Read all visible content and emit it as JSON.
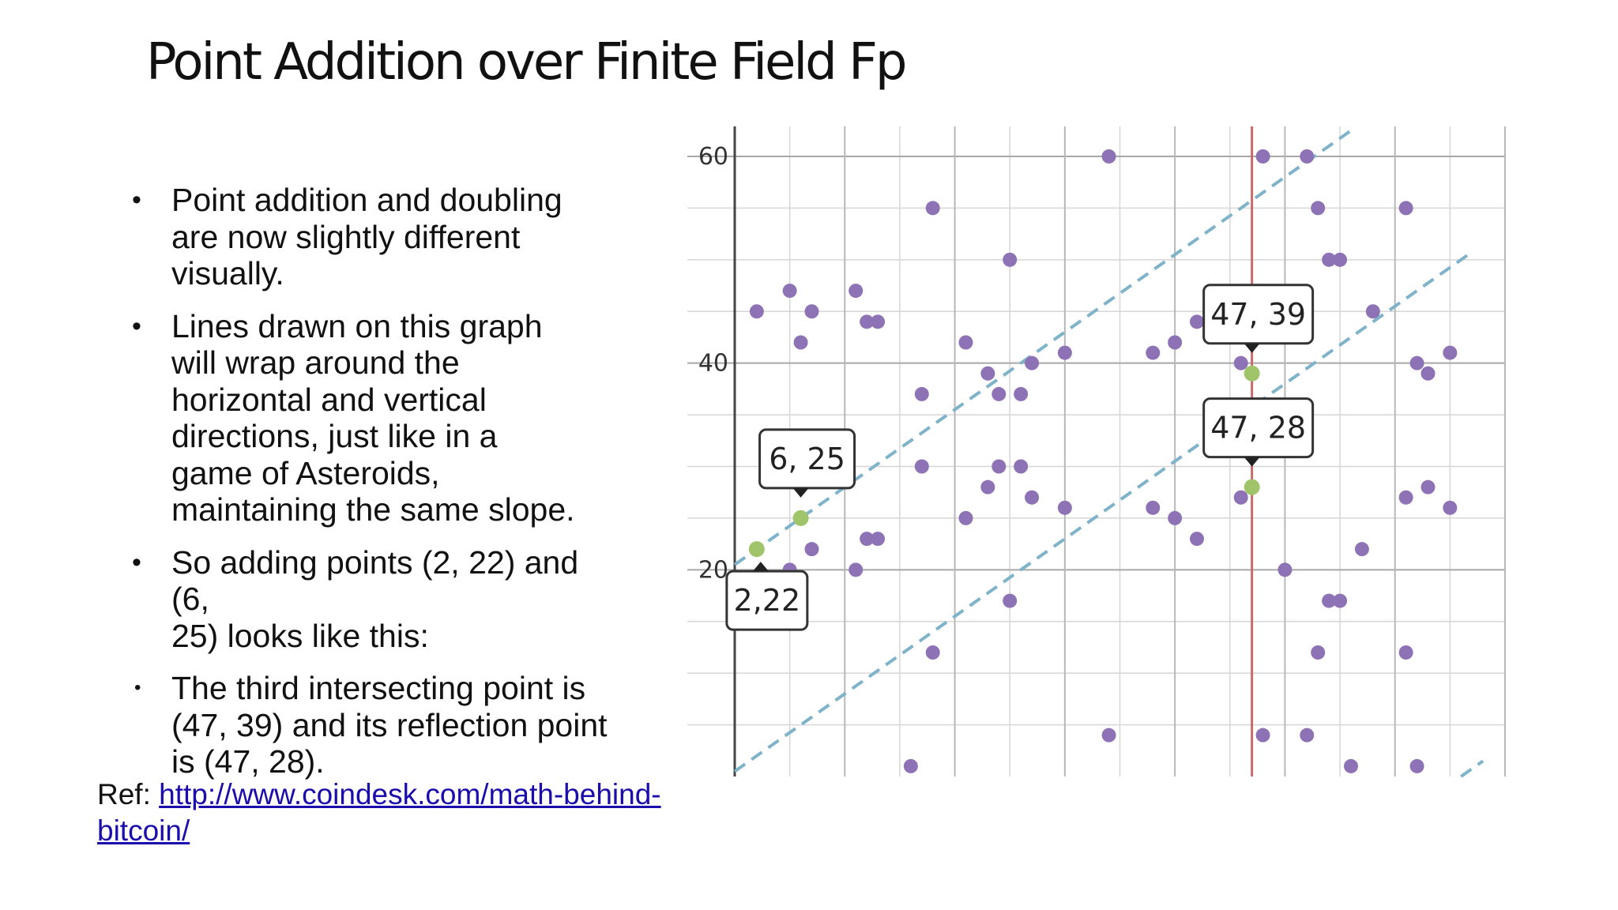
{
  "title": "Point Addition over Finite Field Fp",
  "bullets": [
    {
      "text": "Point addition and doubling\nare  now slightly different\nvisually."
    },
    {
      "text": "Lines drawn on this graph\nwill  wrap around the\nhorizontal and  vertical\ndirections, just like in a\ngame of Asteroids,\nmaintaining  the same slope."
    },
    {
      "text": "So adding points (2, 22) and\n(6,\n25) looks like this:"
    },
    {
      "text": " The third intersecting point is\n(47, 39) and its reflection point\nis  (47, 28)."
    }
  ],
  "ref": {
    "prefix": "Ref: ",
    "link_text": "http://www.coindesk.com/math-behind-bitcoin/"
  },
  "chart_data": {
    "type": "scatter",
    "title": "",
    "xlabel": "",
    "ylabel": "",
    "xlim": [
      0,
      70
    ],
    "ylim": [
      0,
      60
    ],
    "y_ticks": [
      20,
      40,
      60
    ],
    "y_tick_labels": [
      "20",
      "40",
      "60"
    ],
    "grid": true,
    "points": [
      [
        2,
        45
      ],
      [
        5,
        47
      ],
      [
        6,
        42
      ],
      [
        7,
        45
      ],
      [
        11,
        47
      ],
      [
        12,
        44
      ],
      [
        13,
        44
      ],
      [
        17,
        37
      ],
      [
        18,
        55
      ],
      [
        21,
        42
      ],
      [
        23,
        39
      ],
      [
        24,
        37
      ],
      [
        25,
        50
      ],
      [
        26,
        37
      ],
      [
        27,
        40
      ],
      [
        30,
        41
      ],
      [
        34,
        60
      ],
      [
        38,
        41
      ],
      [
        40,
        42
      ],
      [
        42,
        44
      ],
      [
        46,
        40
      ],
      [
        48,
        60
      ],
      [
        52,
        60
      ],
      [
        53,
        55
      ],
      [
        54,
        50
      ],
      [
        55,
        50
      ],
      [
        58,
        45
      ],
      [
        61,
        55
      ],
      [
        62,
        40
      ],
      [
        63,
        39
      ],
      [
        65,
        41
      ],
      [
        17,
        30
      ],
      [
        21,
        25
      ],
      [
        23,
        28
      ],
      [
        24,
        30
      ],
      [
        26,
        30
      ],
      [
        27,
        27
      ],
      [
        30,
        26
      ],
      [
        38,
        26
      ],
      [
        40,
        25
      ],
      [
        42,
        23
      ],
      [
        46,
        27
      ],
      [
        7,
        22
      ],
      [
        5,
        20
      ],
      [
        12,
        23
      ],
      [
        13,
        23
      ],
      [
        11,
        20
      ],
      [
        25,
        17
      ],
      [
        18,
        12
      ],
      [
        16,
        1
      ],
      [
        34,
        4
      ],
      [
        50,
        20
      ],
      [
        53,
        12
      ],
      [
        54,
        17
      ],
      [
        55,
        17
      ],
      [
        57,
        22
      ],
      [
        61,
        27
      ],
      [
        63,
        28
      ],
      [
        65,
        26
      ],
      [
        48,
        4
      ],
      [
        52,
        4
      ],
      [
        56,
        1
      ],
      [
        61,
        12
      ],
      [
        62,
        1
      ]
    ],
    "highlighted_points": [
      [
        2,
        22
      ],
      [
        6,
        25
      ],
      [
        47,
        39
      ],
      [
        47,
        28
      ]
    ],
    "point_labels": [
      {
        "x": 2,
        "y": 22,
        "text": "2,22",
        "position": "below"
      },
      {
        "x": 6,
        "y": 25,
        "text": "6, 25",
        "position": "above"
      },
      {
        "x": 47,
        "y": 39,
        "text": "47, 39",
        "position": "above"
      },
      {
        "x": 47,
        "y": 28,
        "text": "47, 28",
        "position": "above"
      }
    ],
    "dashed_line_slope": 0.75,
    "dashed_segments": [
      [
        [
          0,
          20.5
        ],
        [
          56,
          62.5
        ]
      ],
      [
        [
          0,
          0.5
        ],
        [
          67,
          50.75
        ]
      ],
      [
        [
          66,
          0
        ],
        [
          68,
          1.5
        ]
      ]
    ],
    "vertical_line_x": 47,
    "colors": {
      "points": "#8e72b6",
      "highlighted": "#9fc46a",
      "dashed_line": "#7fb3c9",
      "vertical_line": "#c96a6a",
      "grid": "#d6d6d6",
      "axis": "#444444"
    }
  }
}
